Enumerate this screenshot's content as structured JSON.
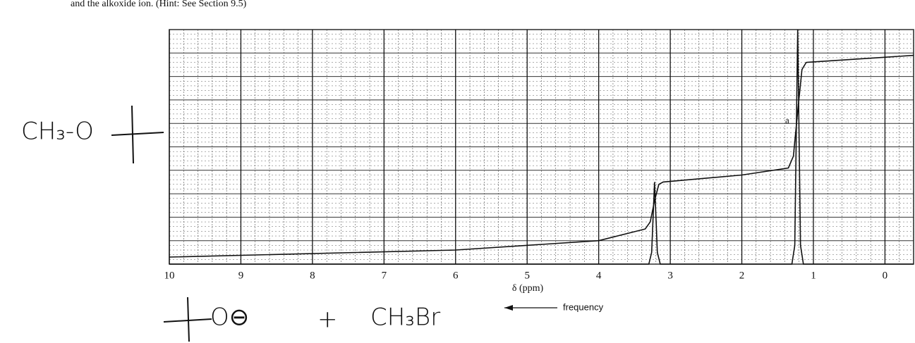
{
  "chart_data": {
    "type": "line",
    "header_text": "and the alkoxide ion. (Hint: See Section 9.5)",
    "x_label": "δ (ppm)",
    "xlim": [
      10,
      -0.4
    ],
    "ylim": [
      0,
      10
    ],
    "xticks": [
      10,
      9,
      8,
      7,
      6,
      5,
      4,
      3,
      2,
      1,
      0
    ],
    "grid": true,
    "series": [
      {
        "color": "#111111",
        "x": [
          10,
          3.3,
          3.26,
          3.22,
          3.18,
          3.14,
          1.3,
          1.26,
          1.22,
          1.18,
          1.14,
          -0.4
        ],
        "values": [
          0,
          0,
          0.5,
          3.5,
          0.5,
          0,
          0,
          0.8,
          10,
          0.8,
          0,
          0
        ]
      },
      {
        "color": "#111111",
        "x": [
          10,
          6,
          4,
          3.35,
          3.28,
          3.22,
          3.16,
          3.1,
          2,
          1.35,
          1.28,
          1.22,
          1.16,
          1.1,
          -0.4
        ],
        "values": [
          0.3,
          0.6,
          1.0,
          1.5,
          1.8,
          2.7,
          3.4,
          3.5,
          3.8,
          4.1,
          4.6,
          6.5,
          8.3,
          8.6,
          8.9
        ]
      }
    ],
    "annotations": [
      "a",
      "frequency"
    ],
    "handwriting": [
      "CH₃-O",
      "O⊖",
      "+",
      "CH₃Br"
    ]
  }
}
